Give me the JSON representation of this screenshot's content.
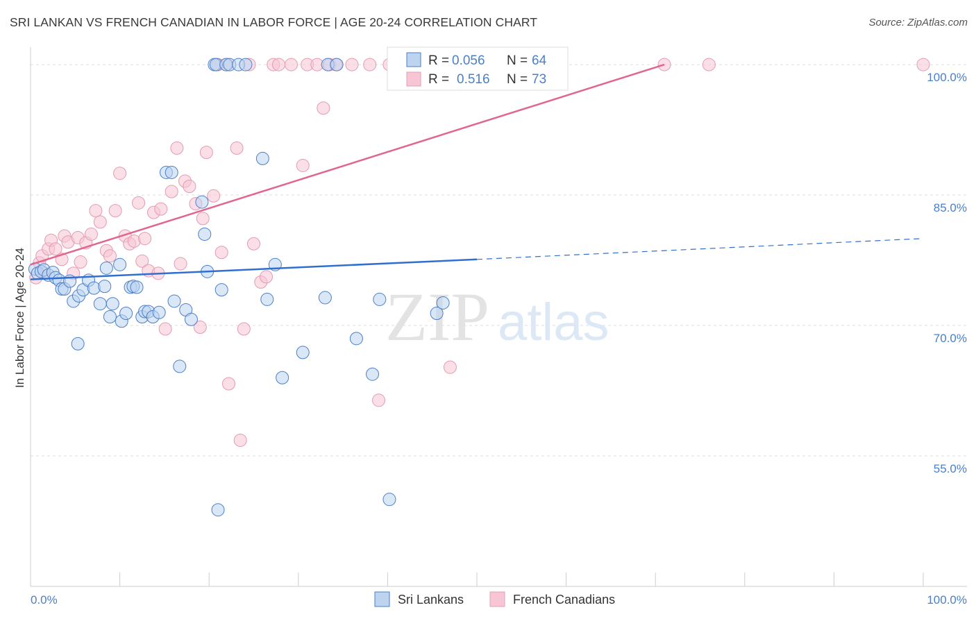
{
  "title": "SRI LANKAN VS FRENCH CANADIAN IN LABOR FORCE | AGE 20-24 CORRELATION CHART",
  "source": "Source: ZipAtlas.com",
  "colors": {
    "blue": "#4a7fc9",
    "blue_fill": "#bcd4f0",
    "blue_line": "#2f6fd0",
    "pink": "#e0658f",
    "pink_fill": "#f7c5d4",
    "grid": "#dddddd",
    "watermark": "#e6e6e6"
  },
  "watermark": {
    "zip": "ZIP",
    "atlas": "atlas"
  },
  "legend_top": [
    {
      "r_label": "R =",
      "r_value": "0.056",
      "n_label": "N =",
      "n_value": "64"
    },
    {
      "r_label": "R =",
      "r_value": "0.516",
      "n_label": "N =",
      "n_value": "73"
    }
  ],
  "chart_data": {
    "type": "scatter",
    "xlabel": "",
    "ylabel": "In Labor Force | Age 20-24",
    "xlim": [
      0,
      100
    ],
    "ylim": [
      40,
      102
    ],
    "x_tick_labels": [
      "0.0%",
      "100.0%"
    ],
    "y_ticks": [
      55,
      70,
      85,
      100
    ],
    "y_tick_labels": [
      "55.0%",
      "70.0%",
      "85.0%",
      "100.0%"
    ],
    "grid": true,
    "legend_position": "bottom",
    "series": [
      {
        "name": "Sri Lankans",
        "r": 0.056,
        "n": 64,
        "trend": {
          "x": [
            0,
            50
          ],
          "y": [
            75.3,
            77.6
          ],
          "dashed_to": [
            100,
            80.0
          ]
        },
        "points": [
          [
            0.5,
            76.5
          ],
          [
            0.8,
            76.0
          ],
          [
            1.2,
            76.2
          ],
          [
            1.5,
            76.4
          ],
          [
            2.0,
            75.8
          ],
          [
            2.5,
            76.1
          ],
          [
            2.8,
            75.5
          ],
          [
            3.2,
            75.2
          ],
          [
            3.5,
            74.2
          ],
          [
            3.8,
            74.2
          ],
          [
            4.4,
            75.1
          ],
          [
            4.8,
            72.8
          ],
          [
            5.4,
            73.4
          ],
          [
            5.9,
            74.1
          ],
          [
            6.5,
            75.2
          ],
          [
            7.1,
            74.3
          ],
          [
            7.8,
            72.5
          ],
          [
            8.3,
            74.5
          ],
          [
            8.5,
            76.6
          ],
          [
            8.9,
            71.0
          ],
          [
            9.2,
            72.5
          ],
          [
            10.0,
            77.0
          ],
          [
            10.2,
            70.5
          ],
          [
            10.7,
            71.4
          ],
          [
            11.2,
            74.4
          ],
          [
            11.5,
            74.5
          ],
          [
            11.9,
            74.4
          ],
          [
            12.5,
            71.0
          ],
          [
            12.8,
            71.6
          ],
          [
            13.2,
            71.6
          ],
          [
            13.7,
            71.0
          ],
          [
            14.4,
            71.5
          ],
          [
            15.2,
            87.6
          ],
          [
            15.8,
            87.6
          ],
          [
            16.1,
            72.8
          ],
          [
            16.7,
            65.3
          ],
          [
            17.4,
            71.8
          ],
          [
            18.0,
            70.7
          ],
          [
            19.2,
            84.2
          ],
          [
            19.5,
            80.5
          ],
          [
            19.8,
            76.2
          ],
          [
            20.6,
            100
          ],
          [
            20.8,
            100
          ],
          [
            21.4,
            74.1
          ],
          [
            21.9,
            100
          ],
          [
            22.3,
            100
          ],
          [
            23.3,
            100
          ],
          [
            24.1,
            100
          ],
          [
            26.0,
            89.2
          ],
          [
            26.5,
            73.0
          ],
          [
            27.4,
            77.0
          ],
          [
            28.2,
            64.0
          ],
          [
            30.5,
            66.9
          ],
          [
            33.0,
            73.2
          ],
          [
            33.3,
            100
          ],
          [
            34.3,
            100
          ],
          [
            36.5,
            68.5
          ],
          [
            38.3,
            64.4
          ],
          [
            39.1,
            73.0
          ],
          [
            40.2,
            50.0
          ],
          [
            45.5,
            71.4
          ],
          [
            46.2,
            72.6
          ],
          [
            5.3,
            67.9
          ],
          [
            21.0,
            48.8
          ]
        ]
      },
      {
        "name": "French Canadians",
        "r": 0.516,
        "n": 73,
        "trend": {
          "x": [
            0,
            71
          ],
          "y": [
            77.0,
            100.0
          ]
        },
        "points": [
          [
            0.6,
            75.5
          ],
          [
            1.0,
            77.2
          ],
          [
            1.3,
            78.0
          ],
          [
            1.6,
            76.0
          ],
          [
            2.0,
            78.8
          ],
          [
            2.3,
            79.8
          ],
          [
            2.8,
            78.8
          ],
          [
            3.5,
            77.6
          ],
          [
            3.8,
            80.3
          ],
          [
            4.2,
            79.6
          ],
          [
            4.8,
            76.0
          ],
          [
            5.3,
            80.1
          ],
          [
            5.6,
            77.3
          ],
          [
            6.2,
            79.5
          ],
          [
            6.8,
            80.5
          ],
          [
            7.3,
            83.2
          ],
          [
            7.8,
            81.9
          ],
          [
            8.5,
            78.6
          ],
          [
            8.9,
            78.0
          ],
          [
            9.5,
            83.2
          ],
          [
            10.0,
            87.5
          ],
          [
            10.6,
            80.3
          ],
          [
            11.1,
            79.4
          ],
          [
            11.6,
            79.7
          ],
          [
            12.1,
            84.1
          ],
          [
            12.5,
            77.4
          ],
          [
            12.8,
            80.0
          ],
          [
            13.2,
            76.3
          ],
          [
            13.8,
            83.0
          ],
          [
            14.3,
            76.0
          ],
          [
            14.6,
            83.4
          ],
          [
            15.1,
            69.6
          ],
          [
            15.8,
            85.4
          ],
          [
            16.4,
            90.4
          ],
          [
            16.8,
            77.1
          ],
          [
            17.3,
            86.6
          ],
          [
            17.8,
            86.0
          ],
          [
            18.5,
            84.0
          ],
          [
            19.0,
            69.8
          ],
          [
            19.3,
            82.3
          ],
          [
            19.7,
            89.9
          ],
          [
            20.5,
            84.9
          ],
          [
            21.0,
            100
          ],
          [
            21.4,
            78.4
          ],
          [
            22.0,
            100
          ],
          [
            22.2,
            63.3
          ],
          [
            23.1,
            90.4
          ],
          [
            23.5,
            56.8
          ],
          [
            23.9,
            69.6
          ],
          [
            24.5,
            100
          ],
          [
            25.0,
            79.4
          ],
          [
            25.8,
            75.0
          ],
          [
            26.4,
            75.6
          ],
          [
            27.2,
            100
          ],
          [
            27.8,
            100
          ],
          [
            29.2,
            100
          ],
          [
            30.5,
            88.4
          ],
          [
            31.0,
            100
          ],
          [
            32.1,
            100
          ],
          [
            32.8,
            95.0
          ],
          [
            33.5,
            100
          ],
          [
            34.2,
            100
          ],
          [
            36.0,
            100
          ],
          [
            38.0,
            100
          ],
          [
            39.0,
            61.4
          ],
          [
            40.2,
            100
          ],
          [
            41.0,
            100
          ],
          [
            45.0,
            100
          ],
          [
            47.0,
            65.2
          ],
          [
            55.0,
            100
          ],
          [
            71.0,
            100
          ],
          [
            76.0,
            100
          ],
          [
            100.0,
            100
          ]
        ]
      }
    ]
  }
}
